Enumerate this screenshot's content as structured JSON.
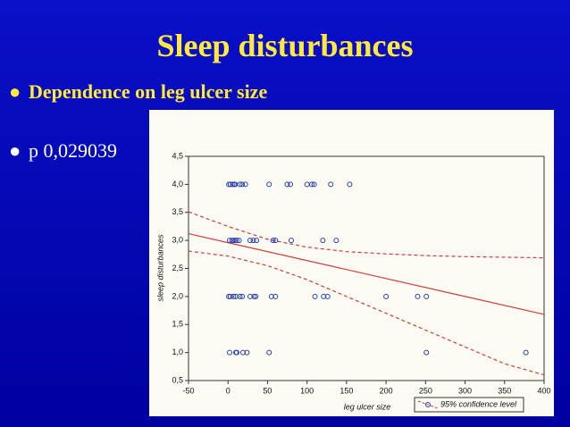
{
  "slide": {
    "title": "Sleep disturbances",
    "bullets": [
      "Dependence on leg ulcer size",
      "p 0,029039"
    ]
  },
  "chart_data": {
    "type": "scatter",
    "x_label": "leg ulcer size",
    "y_label": "sleep disturbances",
    "xlim": [
      -50,
      400
    ],
    "xticks": [
      -50,
      0,
      50,
      100,
      150,
      200,
      250,
      300,
      350,
      400
    ],
    "ylim": [
      0.5,
      4.5
    ],
    "yticks": [
      {
        "value": 0.5,
        "label": "0,5"
      },
      {
        "value": 1,
        "label": "1,0"
      },
      {
        "value": 1.5,
        "label": "1,5"
      },
      {
        "value": 2,
        "label": "2,0"
      },
      {
        "value": 2.5,
        "label": "2,5"
      },
      {
        "value": 3,
        "label": "3,0"
      },
      {
        "value": 3.5,
        "label": "3,5"
      },
      {
        "value": 4,
        "label": "4,0"
      },
      {
        "value": 4.5,
        "label": "4,5"
      }
    ],
    "series": [
      {
        "color": "#2a3fa8",
        "x": [
          1,
          3,
          6,
          8,
          9,
          15,
          18,
          22,
          52,
          75,
          79,
          100,
          106,
          109,
          130,
          154,
          2,
          5,
          7,
          9,
          11,
          14,
          28,
          32,
          36,
          57,
          60,
          80,
          120,
          137,
          1,
          3,
          7,
          10,
          15,
          18,
          28,
          33,
          35,
          55,
          60,
          110,
          121,
          126,
          200,
          240,
          251,
          2,
          10,
          11,
          19,
          24,
          52,
          251,
          377
        ],
        "values": [
          4,
          4,
          4,
          4,
          4,
          4,
          4,
          4,
          4,
          4,
          4,
          4,
          4,
          4,
          4,
          4,
          3,
          3,
          3,
          3,
          3,
          3,
          3,
          3,
          3,
          3,
          3,
          3,
          3,
          3,
          2,
          2,
          2,
          2,
          2,
          2,
          2,
          2,
          2,
          2,
          2,
          2,
          2,
          2,
          2,
          2,
          2,
          1,
          1,
          1,
          1,
          1,
          1,
          1,
          1
        ]
      }
    ],
    "fit": {
      "color": "#d03a3a",
      "x": [
        -50,
        400
      ],
      "values": [
        3.12,
        1.68
      ]
    },
    "confidence_band": {
      "name": "95% confidence level",
      "color": "#d03a3a",
      "x": [
        -50,
        0,
        50,
        100,
        150,
        200,
        250,
        300,
        350,
        400
      ],
      "upper": [
        3.51,
        3.25,
        3.02,
        2.88,
        2.8,
        2.76,
        2.73,
        2.71,
        2.7,
        2.69
      ],
      "lower": [
        2.81,
        2.72,
        2.55,
        2.3,
        2.0,
        1.7,
        1.4,
        1.1,
        0.8,
        0.6
      ]
    }
  }
}
